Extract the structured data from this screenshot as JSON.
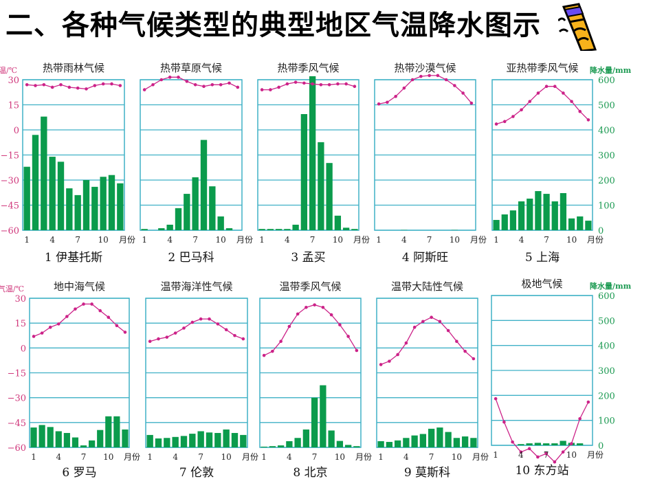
{
  "header": {
    "title": "二、各种气候类型的典型地区气温降水图示",
    "icon": "pencil-icon"
  },
  "axes": {
    "temp_label": "气温/℃",
    "precip_label": "降水量/mm",
    "temp_ticks": [
      30,
      15,
      0,
      -15,
      -30,
      -45,
      -60
    ],
    "precip_ticks": [
      600,
      500,
      400,
      300,
      200,
      100,
      0
    ],
    "month_ticks": [
      "1",
      "4",
      "7",
      "10"
    ],
    "month_unit": "月份"
  },
  "colors": {
    "grid": "#3fb1c6",
    "bar": "#0b9b4c",
    "temp_line": "#cc2288",
    "temp_axis_text": "#d0387c",
    "precip_axis_text": "#1c9a52",
    "title_text": "#222222"
  },
  "chart_data": [
    {
      "type": "bar+line",
      "title": "热带雨林气候",
      "caption": "1 伊基托斯",
      "categories": [
        1,
        2,
        3,
        4,
        5,
        6,
        7,
        8,
        9,
        10,
        11,
        12
      ],
      "series": [
        {
          "name": "降水量/mm",
          "type": "bar",
          "values": [
            253,
            380,
            453,
            293,
            273,
            167,
            140,
            200,
            173,
            213,
            220,
            187
          ]
        },
        {
          "name": "气温/℃",
          "type": "line",
          "values": [
            27,
            26.5,
            27,
            25.5,
            27,
            25.5,
            25,
            24.5,
            26.5,
            27.5,
            27.5,
            26.5
          ]
        }
      ],
      "ylim_temp": [
        -60,
        30
      ],
      "ylim_precip": [
        0,
        600
      ]
    },
    {
      "type": "bar+line",
      "title": "热带草原气候",
      "caption": "2 巴马科",
      "categories": [
        1,
        2,
        3,
        4,
        5,
        6,
        7,
        8,
        9,
        10,
        11,
        12
      ],
      "series": [
        {
          "name": "降水量/mm",
          "type": "bar",
          "values": [
            5,
            0,
            8,
            22,
            88,
            145,
            211,
            360,
            175,
            55,
            8,
            0
          ]
        },
        {
          "name": "气温/℃",
          "type": "line",
          "values": [
            24,
            27,
            30,
            31.5,
            31.5,
            29,
            27,
            26,
            27,
            27,
            28,
            25.5
          ]
        }
      ],
      "ylim_temp": [
        -60,
        30
      ],
      "ylim_precip": [
        0,
        600
      ]
    },
    {
      "type": "bar+line",
      "title": "热带季风气候",
      "caption": "3 孟买",
      "categories": [
        1,
        2,
        3,
        4,
        5,
        6,
        7,
        8,
        9,
        10,
        11,
        12
      ],
      "series": [
        {
          "name": "降水量/mm",
          "type": "bar",
          "values": [
            5,
            5,
            5,
            5,
            22,
            463,
            614,
            351,
            268,
            58,
            10,
            5
          ]
        },
        {
          "name": "气温/℃",
          "type": "line",
          "values": [
            24,
            24,
            25.5,
            27.5,
            28.5,
            28,
            27.5,
            27,
            27,
            27.5,
            27.5,
            26
          ]
        }
      ],
      "ylim_temp": [
        -60,
        30
      ],
      "ylim_precip": [
        0,
        600
      ]
    },
    {
      "type": "bar+line",
      "title": "热带沙漠气候",
      "caption": "4 阿斯旺",
      "categories": [
        1,
        2,
        3,
        4,
        5,
        6,
        7,
        8,
        9,
        10,
        11,
        12
      ],
      "series": [
        {
          "name": "降水量/mm",
          "type": "bar",
          "values": [
            0,
            0,
            0,
            1,
            0,
            0,
            0,
            0,
            0,
            1,
            0,
            0
          ]
        },
        {
          "name": "气温/℃",
          "type": "line",
          "values": [
            15.5,
            16.5,
            20,
            25,
            30,
            32,
            32.5,
            32.5,
            30,
            26.5,
            22,
            16
          ]
        }
      ],
      "ylim_temp": [
        -60,
        30
      ],
      "ylim_precip": [
        0,
        600
      ]
    },
    {
      "type": "bar+line",
      "title": "亚热带季风气候",
      "caption": "5 上海",
      "categories": [
        1,
        2,
        3,
        4,
        5,
        6,
        7,
        8,
        9,
        10,
        11,
        12
      ],
      "series": [
        {
          "name": "降水量/mm",
          "type": "bar",
          "values": [
            41,
            63,
            79,
            115,
            126,
            156,
            145,
            115,
            148,
            47,
            55,
            38
          ]
        },
        {
          "name": "气温/℃",
          "type": "line",
          "values": [
            3.5,
            5,
            8,
            12,
            17,
            22,
            26,
            26,
            22,
            17,
            11,
            6
          ]
        }
      ],
      "ylim_temp": [
        -60,
        30
      ],
      "ylim_precip": [
        0,
        600
      ]
    },
    {
      "type": "bar+line",
      "title": "地中海气候",
      "caption": "6 罗马",
      "categories": [
        1,
        2,
        3,
        4,
        5,
        6,
        7,
        8,
        9,
        10,
        11,
        12
      ],
      "series": [
        {
          "name": "降水量/mm",
          "type": "bar",
          "values": [
            80,
            90,
            82,
            65,
            58,
            40,
            8,
            28,
            70,
            125,
            125,
            72
          ]
        },
        {
          "name": "气温/℃",
          "type": "line",
          "values": [
            7,
            9,
            12.5,
            14.5,
            19,
            23.5,
            26.5,
            26.5,
            22.5,
            18.5,
            13.5,
            9.5
          ]
        }
      ],
      "ylim_temp": [
        -60,
        30
      ],
      "ylim_precip": [
        0,
        600
      ]
    },
    {
      "type": "bar+line",
      "title": "温带海洋性气候",
      "caption": "7 伦敦",
      "categories": [
        1,
        2,
        3,
        4,
        5,
        6,
        7,
        8,
        9,
        10,
        11,
        12
      ],
      "series": [
        {
          "name": "降水量/mm",
          "type": "bar",
          "values": [
            50,
            36,
            38,
            42,
            46,
            55,
            65,
            60,
            58,
            72,
            58,
            50
          ]
        },
        {
          "name": "气温/℃",
          "type": "line",
          "values": [
            4,
            5.5,
            6.5,
            9,
            12,
            15.5,
            17.5,
            17.5,
            14.5,
            11,
            7.5,
            5.5
          ]
        }
      ],
      "ylim_temp": [
        -60,
        30
      ],
      "ylim_precip": [
        0,
        600
      ]
    },
    {
      "type": "bar+line",
      "title": "温带季风气候",
      "caption": "8 北京",
      "categories": [
        1,
        2,
        3,
        4,
        5,
        6,
        7,
        8,
        9,
        10,
        11,
        12
      ],
      "series": [
        {
          "name": "降水量/mm",
          "type": "bar",
          "values": [
            3,
            5,
            8,
            25,
            38,
            72,
            200,
            250,
            68,
            26,
            10,
            5
          ]
        },
        {
          "name": "气温/℃",
          "type": "line",
          "values": [
            -4.5,
            -2,
            4,
            13,
            20.5,
            24.5,
            26,
            24.5,
            20,
            14,
            7,
            -1.5
          ]
        }
      ],
      "ylim_temp": [
        -60,
        30
      ],
      "ylim_precip": [
        0,
        600
      ]
    },
    {
      "type": "bar+line",
      "title": "温带大陆性气候",
      "caption": "9 莫斯科",
      "categories": [
        1,
        2,
        3,
        4,
        5,
        6,
        7,
        8,
        9,
        10,
        11,
        12
      ],
      "series": [
        {
          "name": "降水量/mm",
          "type": "bar",
          "values": [
            25,
            22,
            28,
            38,
            48,
            54,
            75,
            80,
            62,
            38,
            44,
            38
          ]
        },
        {
          "name": "气温/℃",
          "type": "line",
          "values": [
            -10,
            -8,
            -4,
            3,
            12.5,
            16,
            18.5,
            16,
            10.5,
            4,
            -2,
            -6.5
          ]
        }
      ],
      "ylim_temp": [
        -60,
        30
      ],
      "ylim_precip": [
        0,
        600
      ]
    },
    {
      "type": "bar+line",
      "title": "极地气候",
      "caption": "10 东方站",
      "categories": [
        1,
        2,
        3,
        4,
        5,
        6,
        7,
        8,
        9,
        10,
        11,
        12
      ],
      "series": [
        {
          "name": "降水量/mm",
          "type": "bar",
          "values": [
            0,
            0,
            0,
            5,
            8,
            10,
            8,
            8,
            18,
            10,
            8,
            0
          ]
        },
        {
          "name": "气温/℃",
          "type": "line",
          "values": [
            -32,
            -46,
            -58,
            -64,
            -62,
            -67,
            -65,
            -70,
            -64,
            -59,
            -44,
            -34
          ]
        }
      ],
      "ylim_temp": [
        -60,
        30
      ],
      "ylim_precip": [
        0,
        600
      ]
    }
  ]
}
